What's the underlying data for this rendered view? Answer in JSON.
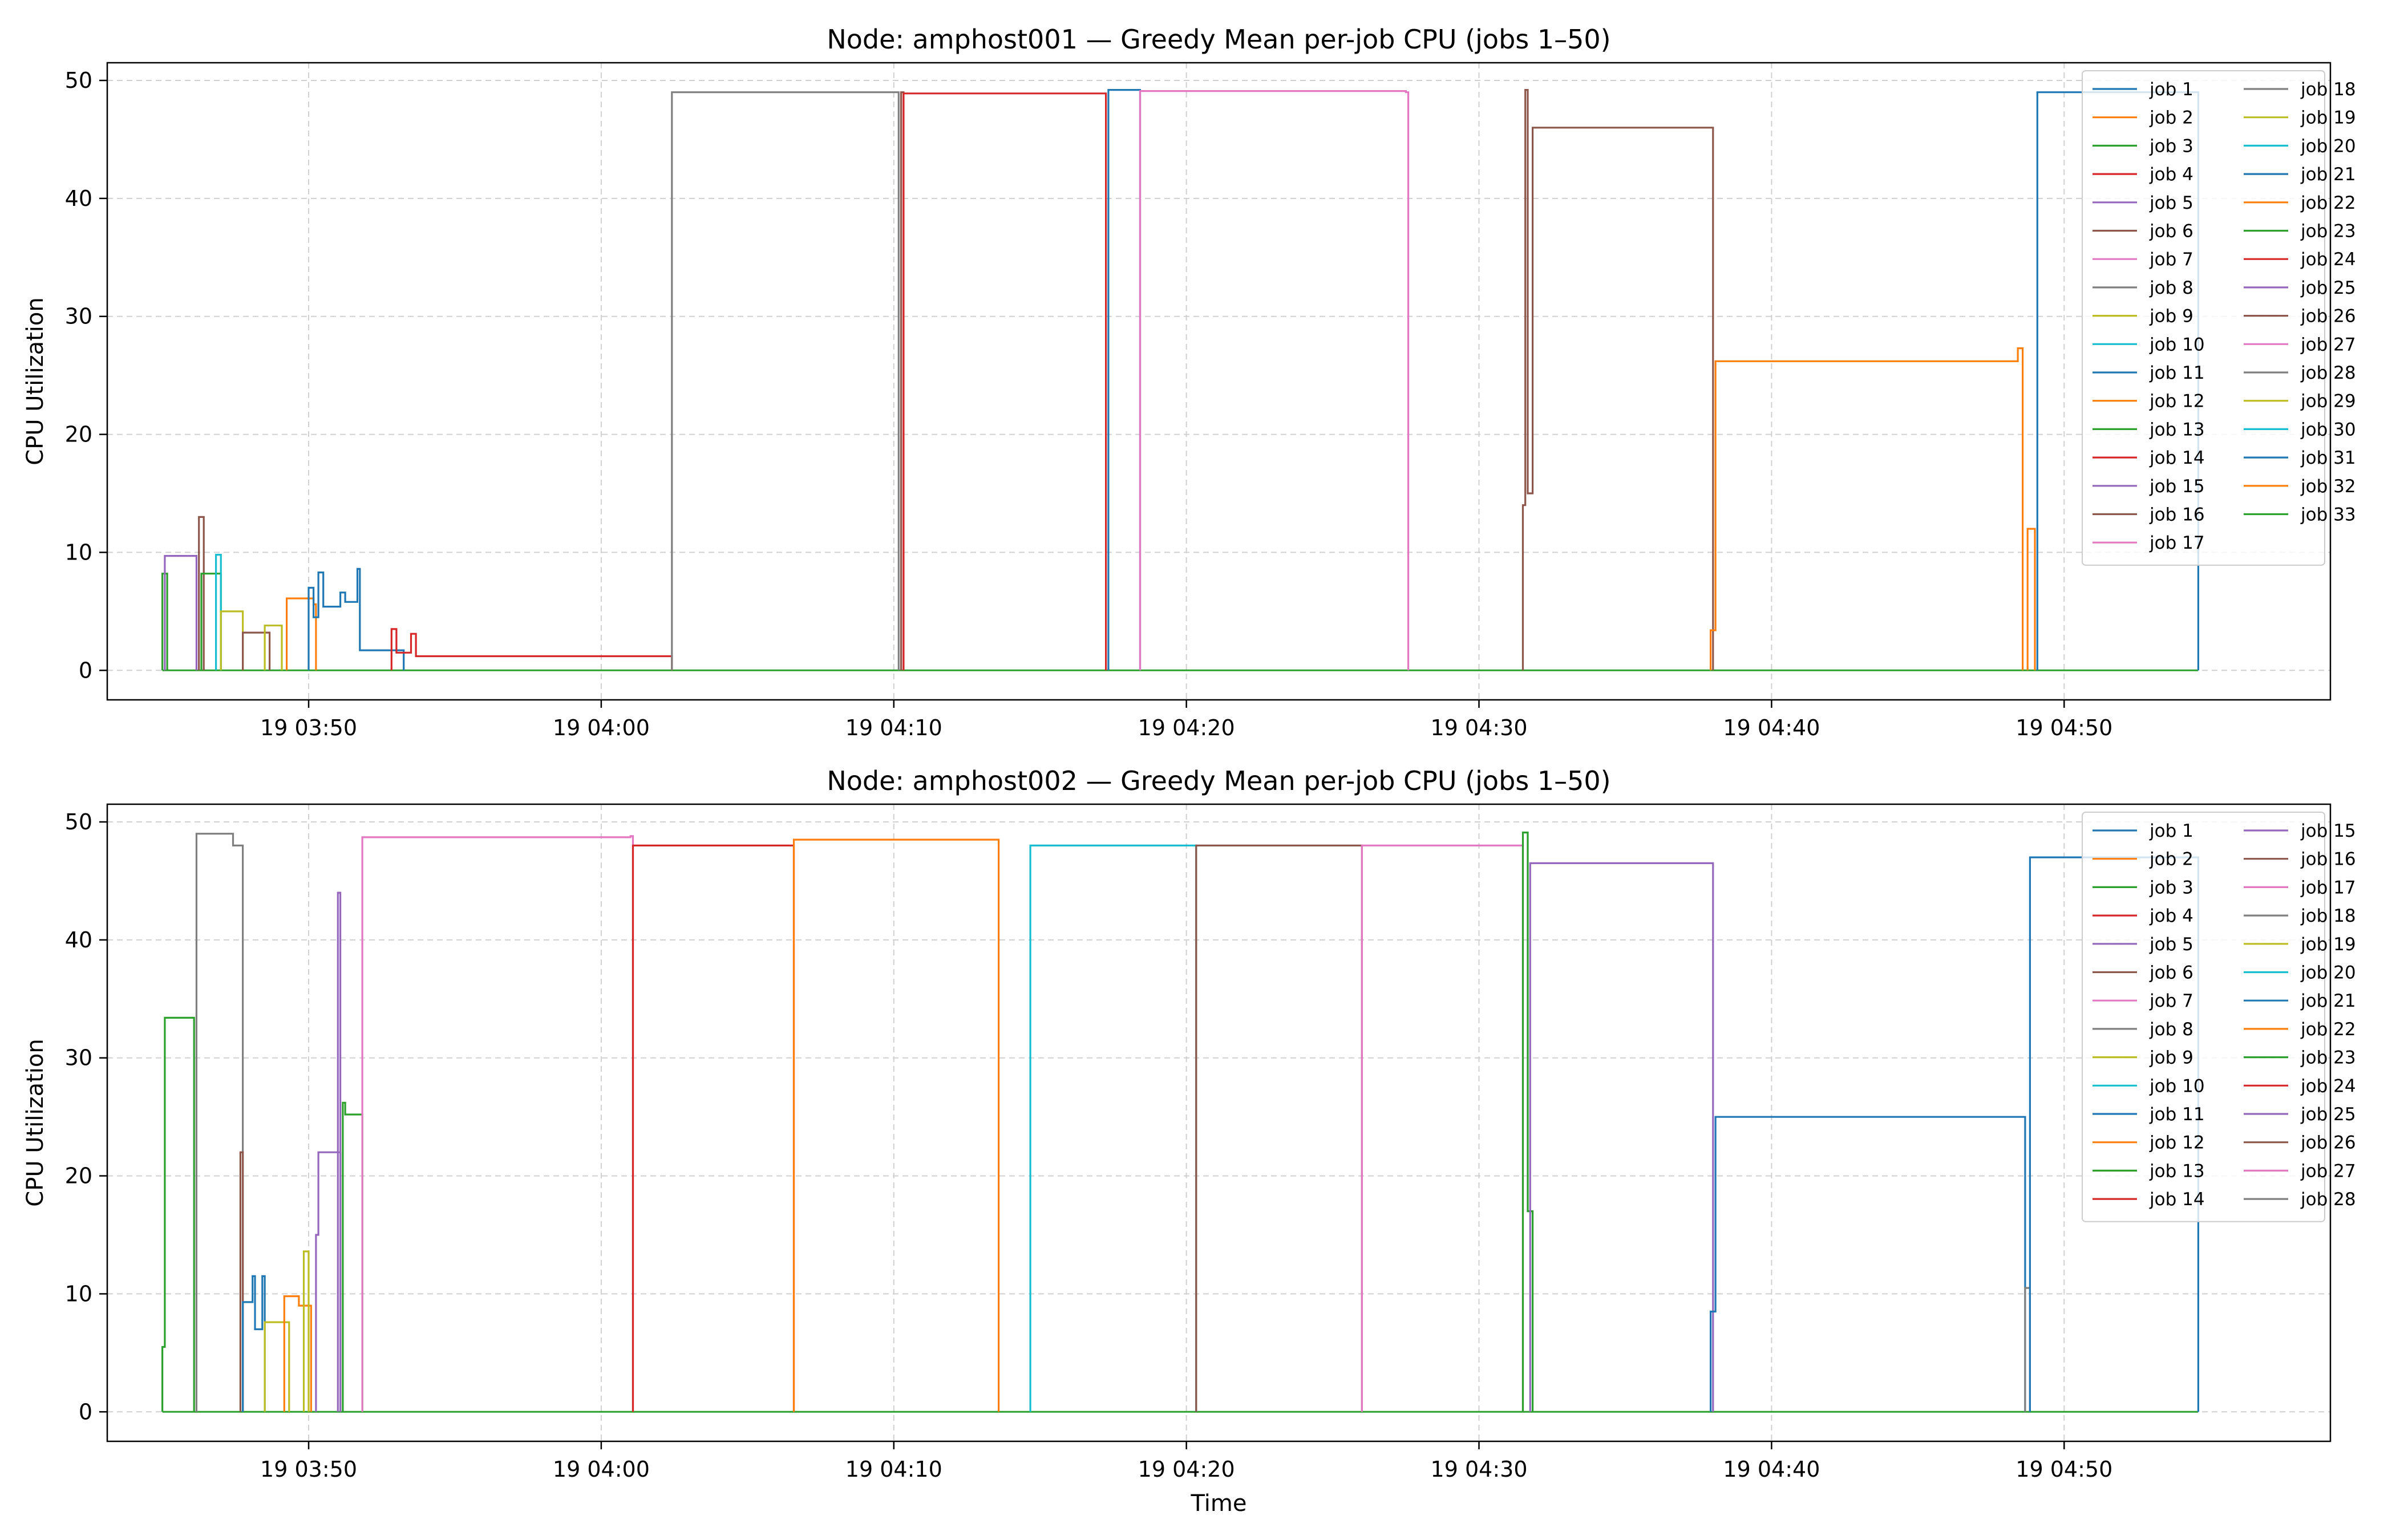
{
  "chart_data": [
    {
      "type": "line",
      "title": "Node: amphost001 — Greedy Mean per-job CPU (jobs 1–50)",
      "xlabel": "",
      "ylabel": "CPU Utilization",
      "xlim": [
        "19 03:43:07",
        "19 04:59:06"
      ],
      "ylim": [
        -2.5,
        51.5
      ],
      "yticks": [
        0,
        10,
        20,
        30,
        40,
        50
      ],
      "xticks": [
        "19 03:50",
        "19 04:00",
        "19 04:10",
        "19 04:20",
        "19 04:30",
        "19 04:40",
        "19 04:50"
      ],
      "grid": true,
      "legend_position": "top-right",
      "legend_columns": 2,
      "legend": [
        "job 1",
        "job 2",
        "job 3",
        "job 4",
        "job 5",
        "job 6",
        "job 7",
        "job 8",
        "job 9",
        "job 10",
        "job 11",
        "job 12",
        "job 13",
        "job 14",
        "job 15",
        "job 16",
        "job 17",
        "job 18",
        "job 19",
        "job 20",
        "job 21",
        "job 22",
        "job 23",
        "job 24",
        "job 25",
        "job 26",
        "job 27",
        "job 28",
        "job 29",
        "job 30",
        "job 31",
        "job 32",
        "job 33"
      ],
      "series": [
        {
          "name": "job 3",
          "color": "#2ca02c",
          "step": [
            [
              "19 03:45:00",
              8.2
            ],
            [
              "19 03:45:10",
              0
            ]
          ]
        },
        {
          "name": "job 5",
          "color": "#9467bd",
          "step": [
            [
              "19 03:45:05",
              9.7
            ],
            [
              "19 03:46:05",
              9.7
            ],
            [
              "19 03:46:10",
              0
            ]
          ]
        },
        {
          "name": "job 6",
          "color": "#8c564b",
          "step": [
            [
              "19 03:46:15",
              13.0
            ],
            [
              "19 03:46:25",
              0
            ]
          ]
        },
        {
          "name": "job 13",
          "color": "#2ca02c",
          "step": [
            [
              "19 03:46:20",
              8.2
            ],
            [
              "19 03:46:50",
              8.2
            ],
            [
              "19 03:47:00",
              0
            ]
          ]
        },
        {
          "name": "job 10",
          "color": "#17becf",
          "step": [
            [
              "19 03:46:50",
              9.8
            ],
            [
              "19 03:47:00",
              0
            ]
          ]
        },
        {
          "name": "job 8",
          "color": "#bcbd22",
          "step": [
            [
              "19 03:47:00",
              5.0
            ],
            [
              "19 03:47:40",
              5.0
            ],
            [
              "19 03:47:45",
              0
            ]
          ]
        },
        {
          "name": "job 26",
          "color": "#8c564b",
          "step": [
            [
              "19 03:47:45",
              3.2
            ],
            [
              "19 03:48:35",
              3.2
            ],
            [
              "19 03:48:40",
              0
            ]
          ]
        },
        {
          "name": "job 9",
          "color": "#bcbd22",
          "step": [
            [
              "19 03:48:30",
              3.8
            ],
            [
              "19 03:49:00",
              3.8
            ],
            [
              "19 03:49:05",
              0
            ]
          ]
        },
        {
          "name": "job 12",
          "color": "#ff7f0e",
          "step": [
            [
              "19 03:49:15",
              6.1
            ],
            [
              "19 03:50:10",
              5.6
            ],
            [
              "19 03:50:15",
              0
            ]
          ]
        },
        {
          "name": "job 21",
          "color": "#1f77b4",
          "step": [
            [
              "19 03:50:00",
              7.0
            ],
            [
              "19 03:50:10",
              4.5
            ],
            [
              "19 03:50:20",
              8.3
            ],
            [
              "19 03:50:30",
              5.4
            ],
            [
              "19 03:51:00",
              5.4
            ],
            [
              "19 03:51:05",
              6.6
            ],
            [
              "19 03:51:15",
              5.8
            ],
            [
              "19 03:51:35",
              5.8
            ],
            [
              "19 03:51:40",
              8.6
            ],
            [
              "19 03:51:45",
              1.7
            ],
            [
              "19 03:53:10",
              1.7
            ],
            [
              "19 03:53:15",
              0
            ]
          ]
        },
        {
          "name": "job 24",
          "color": "#d62728",
          "step": [
            [
              "19 03:52:50",
              3.5
            ],
            [
              "19 03:53:00",
              1.5
            ],
            [
              "19 03:53:30",
              3.1
            ],
            [
              "19 03:53:40",
              1.2
            ],
            [
              "19 04:02:20",
              1.2
            ],
            [
              "19 04:02:25",
              0
            ]
          ]
        },
        {
          "name": "job 18",
          "color": "#7f7f7f",
          "step": [
            [
              "19 04:02:25",
              49.0
            ],
            [
              "19 04:10:05",
              49.0
            ],
            [
              "19 04:10:10",
              0
            ]
          ]
        },
        {
          "name": "job 16",
          "color": "#8c564b",
          "step": [
            [
              "19 04:10:15",
              49.0
            ],
            [
              "19 04:10:20",
              0
            ]
          ]
        },
        {
          "name": "job 14",
          "color": "#d62728",
          "step": [
            [
              "19 04:10:20",
              48.9
            ],
            [
              "19 04:17:10",
              48.9
            ],
            [
              "19 04:17:15",
              0
            ]
          ]
        },
        {
          "name": "job 11",
          "color": "#1f77b4",
          "step": [
            [
              "19 04:17:20",
              49.2
            ],
            [
              "19 04:18:20",
              49.2
            ],
            [
              "19 04:18:25",
              0
            ]
          ]
        },
        {
          "name": "job 17",
          "color": "#e377c2",
          "step": [
            [
              "19 04:18:25",
              49.1
            ],
            [
              "19 04:27:30",
              49.0
            ],
            [
              "19 04:27:35",
              0
            ]
          ]
        },
        {
          "name": "job 26",
          "color": "#8c564b",
          "step": [
            [
              "19 04:31:30",
              14.0
            ],
            [
              "19 04:31:35",
              49.2
            ],
            [
              "19 04:31:40",
              15.0
            ],
            [
              "19 04:31:50",
              46.0
            ],
            [
              "19 04:37:55",
              46.0
            ],
            [
              "19 04:38:00",
              0
            ]
          ]
        },
        {
          "name": "job 32",
          "color": "#ff7f0e",
          "step": [
            [
              "19 04:37:55",
              3.4
            ],
            [
              "19 04:38:05",
              26.2
            ],
            [
              "19 04:48:20",
              26.2
            ],
            [
              "19 04:48:25",
              27.3
            ],
            [
              "19 04:48:35",
              0
            ]
          ]
        },
        {
          "name": "job 33",
          "color": "#ff7f0e",
          "step": [
            [
              "19 04:48:45",
              12.0
            ],
            [
              "19 04:49:00",
              0
            ]
          ]
        },
        {
          "name": "job 1",
          "color": "#1f77b4",
          "step": [
            [
              "19 04:49:05",
              49.0
            ],
            [
              "19 04:54:30",
              49.0
            ],
            [
              "19 04:54:35",
              0
            ]
          ]
        }
      ]
    },
    {
      "type": "line",
      "title": "Node: amphost002 — Greedy Mean per-job CPU (jobs 1–50)",
      "xlabel": "Time",
      "ylabel": "CPU Utilization",
      "xlim": [
        "19 03:43:07",
        "19 04:59:06"
      ],
      "ylim": [
        -2.5,
        51.5
      ],
      "yticks": [
        0,
        10,
        20,
        30,
        40,
        50
      ],
      "xticks": [
        "19 03:50",
        "19 04:00",
        "19 04:10",
        "19 04:20",
        "19 04:30",
        "19 04:40",
        "19 04:50"
      ],
      "grid": true,
      "legend_position": "top-right",
      "legend_columns": 2,
      "legend": [
        "job 1",
        "job 2",
        "job 3",
        "job 4",
        "job 5",
        "job 6",
        "job 7",
        "job 8",
        "job 9",
        "job 10",
        "job 11",
        "job 12",
        "job 13",
        "job 14",
        "job 15",
        "job 16",
        "job 17",
        "job 18",
        "job 19",
        "job 20",
        "job 21",
        "job 22",
        "job 23",
        "job 24",
        "job 25",
        "job 26",
        "job 27",
        "job 28"
      ],
      "series": [
        {
          "name": "job 3",
          "color": "#2ca02c",
          "step": [
            [
              "19 03:45:00",
              5.5
            ],
            [
              "19 03:45:05",
              33.4
            ],
            [
              "19 03:46:00",
              33.4
            ],
            [
              "19 03:46:05",
              0
            ]
          ]
        },
        {
          "name": "job 18",
          "color": "#7f7f7f",
          "step": [
            [
              "19 03:46:10",
              49.0
            ],
            [
              "19 03:47:20",
              49.0
            ],
            [
              "19 03:47:25",
              48.0
            ],
            [
              "19 03:47:40",
              48.0
            ],
            [
              "19 03:47:45",
              0
            ]
          ]
        },
        {
          "name": "job 6",
          "color": "#8c564b",
          "step": [
            [
              "19 03:47:40",
              22.0
            ],
            [
              "19 03:47:45",
              0
            ]
          ]
        },
        {
          "name": "job 11",
          "color": "#1f77b4",
          "step": [
            [
              "19 03:47:45",
              9.3
            ],
            [
              "19 03:48:05",
              11.5
            ],
            [
              "19 03:48:10",
              7.0
            ],
            [
              "19 03:48:25",
              11.5
            ],
            [
              "19 03:48:30",
              0
            ]
          ]
        },
        {
          "name": "job 8",
          "color": "#bcbd22",
          "step": [
            [
              "19 03:48:30",
              7.6
            ],
            [
              "19 03:49:15",
              7.6
            ],
            [
              "19 03:49:20",
              0
            ]
          ]
        },
        {
          "name": "job 12",
          "color": "#ff7f0e",
          "step": [
            [
              "19 03:49:10",
              9.8
            ],
            [
              "19 03:49:40",
              9.0
            ],
            [
              "19 03:50:00",
              9.0
            ],
            [
              "19 03:50:05",
              0
            ]
          ]
        },
        {
          "name": "job 9",
          "color": "#bcbd22",
          "step": [
            [
              "19 03:49:50",
              13.6
            ],
            [
              "19 03:50:00",
              0
            ]
          ]
        },
        {
          "name": "job 5",
          "color": "#9467bd",
          "step": [
            [
              "19 03:50:15",
              15.0
            ],
            [
              "19 03:50:20",
              22.0
            ],
            [
              "19 03:51:00",
              22.0
            ],
            [
              "19 03:51:05",
              0
            ]
          ]
        },
        {
          "name": "job 15",
          "color": "#9467bd",
          "step": [
            [
              "19 03:51:00",
              44.0
            ],
            [
              "19 03:51:05",
              0
            ]
          ]
        },
        {
          "name": "job 23",
          "color": "#2ca02c",
          "step": [
            [
              "19 03:51:10",
              26.2
            ],
            [
              "19 03:51:15",
              25.2
            ],
            [
              "19 03:51:45",
              25.2
            ],
            [
              "19 03:51:50",
              0
            ]
          ]
        },
        {
          "name": "job 17",
          "color": "#e377c2",
          "step": [
            [
              "19 03:51:50",
              48.7
            ],
            [
              "19 04:01:00",
              48.8
            ],
            [
              "19 04:01:05",
              0
            ]
          ]
        },
        {
          "name": "job 24",
          "color": "#d62728",
          "step": [
            [
              "19 04:01:05",
              48.0
            ],
            [
              "19 04:06:30",
              48.0
            ],
            [
              "19 04:06:35",
              0
            ]
          ]
        },
        {
          "name": "job 22",
          "color": "#ff7f0e",
          "step": [
            [
              "19 04:06:35",
              48.5
            ],
            [
              "19 04:13:30",
              48.5
            ],
            [
              "19 04:13:35",
              0
            ]
          ]
        },
        {
          "name": "job 20",
          "color": "#17becf",
          "step": [
            [
              "19 04:14:40",
              48.0
            ],
            [
              "19 04:20:15",
              48.0
            ],
            [
              "19 04:20:20",
              0
            ]
          ]
        },
        {
          "name": "job 26",
          "color": "#8c564b",
          "step": [
            [
              "19 04:20:20",
              48.0
            ],
            [
              "19 04:25:55",
              48.0
            ],
            [
              "19 04:26:00",
              0
            ]
          ]
        },
        {
          "name": "job 27",
          "color": "#e377c2",
          "step": [
            [
              "19 04:26:00",
              48.0
            ],
            [
              "19 04:31:25",
              48.0
            ],
            [
              "19 04:31:30",
              0
            ]
          ]
        },
        {
          "name": "job 13",
          "color": "#2ca02c",
          "step": [
            [
              "19 04:31:30",
              49.1
            ],
            [
              "19 04:31:40",
              17.0
            ],
            [
              "19 04:31:50",
              0
            ]
          ]
        },
        {
          "name": "job 25",
          "color": "#9467bd",
          "step": [
            [
              "19 04:31:45",
              46.5
            ],
            [
              "19 04:37:55",
              46.5
            ],
            [
              "19 04:38:00",
              0
            ]
          ]
        },
        {
          "name": "job 21",
          "color": "#1f77b4",
          "step": [
            [
              "19 04:37:55",
              8.5
            ],
            [
              "19 04:38:05",
              25.0
            ],
            [
              "19 04:48:35",
              25.0
            ],
            [
              "19 04:48:40",
              0
            ]
          ]
        },
        {
          "name": "job 28",
          "color": "#7f7f7f",
          "step": [
            [
              "19 04:48:40",
              10.5
            ],
            [
              "19 04:48:50",
              0
            ]
          ]
        },
        {
          "name": "job 1",
          "color": "#1f77b4",
          "step": [
            [
              "19 04:48:50",
              47.0
            ],
            [
              "19 04:54:30",
              47.0
            ],
            [
              "19 04:54:35",
              0
            ]
          ]
        }
      ]
    }
  ]
}
